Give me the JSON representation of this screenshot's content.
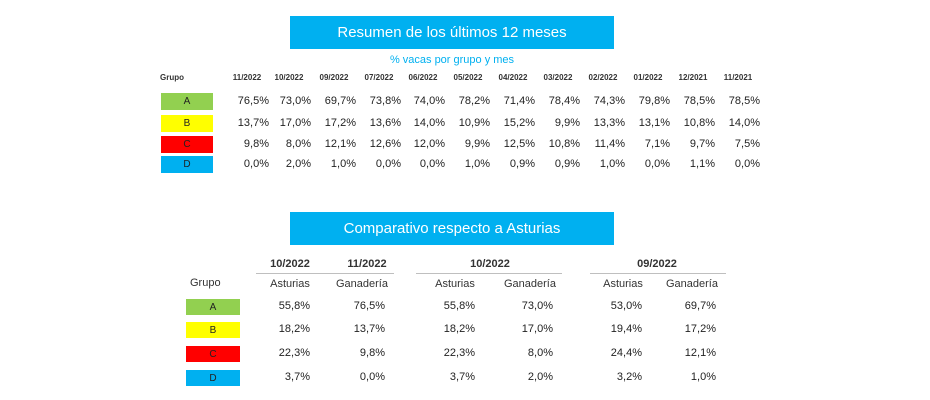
{
  "summary": {
    "title": "Resumen de los últimos 12 meses",
    "subtitle": "% vacas por grupo y mes",
    "group_header": "Grupo",
    "months": [
      "11/2022",
      "10/2022",
      "09/2022",
      "07/2022",
      "06/2022",
      "05/2022",
      "04/2022",
      "03/2022",
      "02/2022",
      "01/2022",
      "12/2021",
      "11/2021"
    ],
    "rows": [
      {
        "group": "A",
        "color": "#92d050",
        "values": [
          "76,5%",
          "73,0%",
          "69,7%",
          "73,8%",
          "74,0%",
          "78,2%",
          "71,4%",
          "78,4%",
          "74,3%",
          "79,8%",
          "78,5%",
          "78,5%"
        ]
      },
      {
        "group": "B",
        "color": "#ffff00",
        "values": [
          "13,7%",
          "17,0%",
          "17,2%",
          "13,6%",
          "14,0%",
          "10,9%",
          "15,2%",
          "9,9%",
          "13,3%",
          "13,1%",
          "10,8%",
          "14,0%"
        ]
      },
      {
        "group": "C",
        "color": "#ff0000",
        "values": [
          "9,8%",
          "8,0%",
          "12,1%",
          "12,6%",
          "12,0%",
          "9,9%",
          "12,5%",
          "10,8%",
          "11,4%",
          "7,1%",
          "9,7%",
          "7,5%"
        ]
      },
      {
        "group": "D",
        "color": "#00b0f0",
        "values": [
          "0,0%",
          "2,0%",
          "1,0%",
          "0,0%",
          "0,0%",
          "1,0%",
          "0,9%",
          "0,9%",
          "1,0%",
          "0,0%",
          "1,1%",
          "0,0%"
        ]
      }
    ]
  },
  "comparison": {
    "title": "Comparativo respecto a Asturias",
    "group_header": "Grupo",
    "blocks": [
      {
        "dates": [
          "10/2022",
          "11/2022"
        ],
        "cols": [
          "Asturias",
          "Ganadería"
        ]
      },
      {
        "dates": [
          "10/2022"
        ],
        "cols": [
          "Asturias",
          "Ganadería"
        ]
      },
      {
        "dates": [
          "09/2022"
        ],
        "cols": [
          "Asturias",
          "Ganadería"
        ]
      }
    ],
    "rows": [
      {
        "group": "A",
        "color": "#92d050",
        "values": [
          "55,8%",
          "76,5%",
          "55,8%",
          "73,0%",
          "53,0%",
          "69,7%"
        ]
      },
      {
        "group": "B",
        "color": "#ffff00",
        "values": [
          "18,2%",
          "13,7%",
          "18,2%",
          "17,0%",
          "19,4%",
          "17,2%"
        ]
      },
      {
        "group": "C",
        "color": "#ff0000",
        "values": [
          "22,3%",
          "9,8%",
          "22,3%",
          "8,0%",
          "24,4%",
          "12,1%"
        ]
      },
      {
        "group": "D",
        "color": "#00b0f0",
        "values": [
          "3,7%",
          "0,0%",
          "3,7%",
          "2,0%",
          "3,2%",
          "1,0%"
        ]
      }
    ]
  }
}
